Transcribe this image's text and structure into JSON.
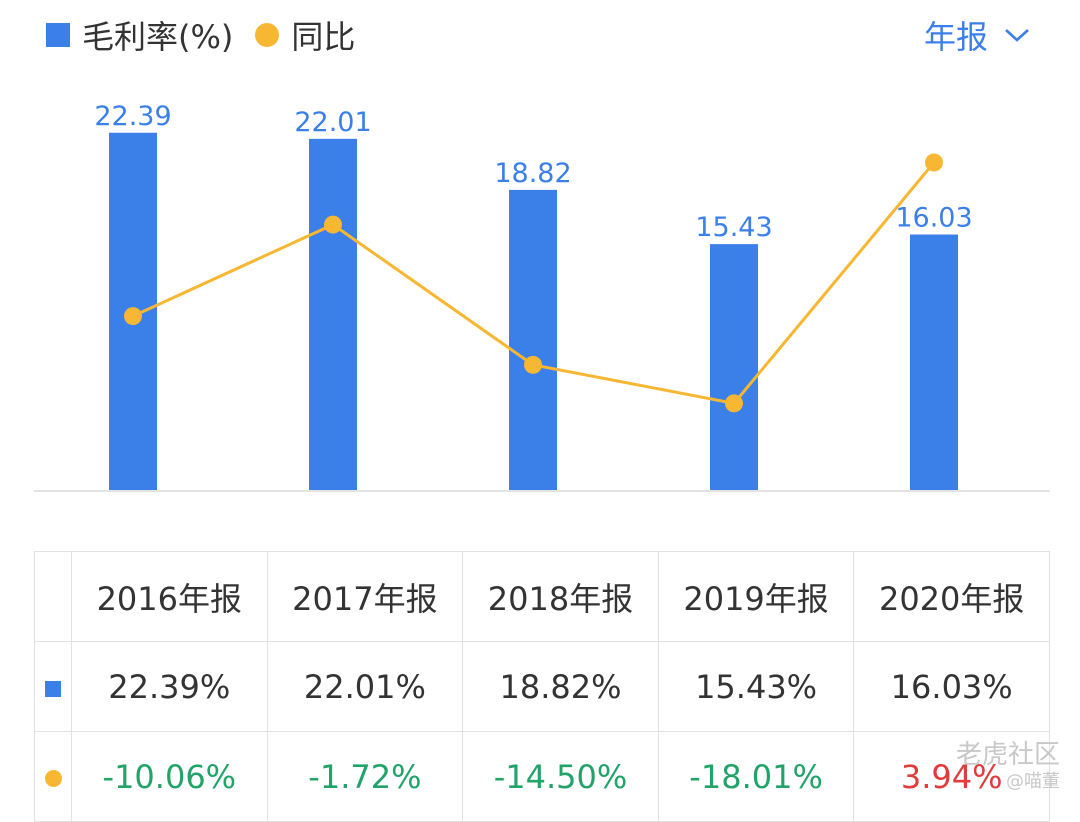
{
  "legend": {
    "bar_label": "毛利率(%)",
    "line_label": "同比"
  },
  "period_selector": {
    "label": "年报"
  },
  "chart_data": {
    "type": "bar",
    "categories": [
      "2016年报",
      "2017年报",
      "2018年报",
      "2019年报",
      "2020年报"
    ],
    "series": [
      {
        "name": "毛利率(%)",
        "type": "bar",
        "values": [
          22.39,
          22.01,
          18.82,
          15.43,
          16.03
        ],
        "labels": [
          "22.39",
          "22.01",
          "18.82",
          "15.43",
          "16.03"
        ],
        "color": "#3b7fe8"
      },
      {
        "name": "同比",
        "type": "line",
        "values": [
          -10.06,
          -1.72,
          -14.5,
          -18.01,
          3.94
        ],
        "color": "#f7b732"
      }
    ],
    "ylim_bar": [
      0,
      24
    ],
    "ylim_line": [
      -26,
      9
    ]
  },
  "table": {
    "headers": [
      "2016年报",
      "2017年报",
      "2018年报",
      "2019年报",
      "2020年报"
    ],
    "rows": [
      {
        "marker": "bar",
        "cells": [
          "22.39%",
          "22.01%",
          "18.82%",
          "15.43%",
          "16.03%"
        ]
      },
      {
        "marker": "line",
        "cells": [
          "-10.06%",
          "-1.72%",
          "-14.50%",
          "-18.01%",
          "3.94%"
        ]
      }
    ]
  },
  "watermark": {
    "main": "老虎社区",
    "sub": "@喵董"
  },
  "colors": {
    "bar": "#3b7fe8",
    "line": "#f7b732",
    "negative": "#22a36a",
    "positive": "#e03c3c",
    "accent": "#3b7fe8"
  }
}
